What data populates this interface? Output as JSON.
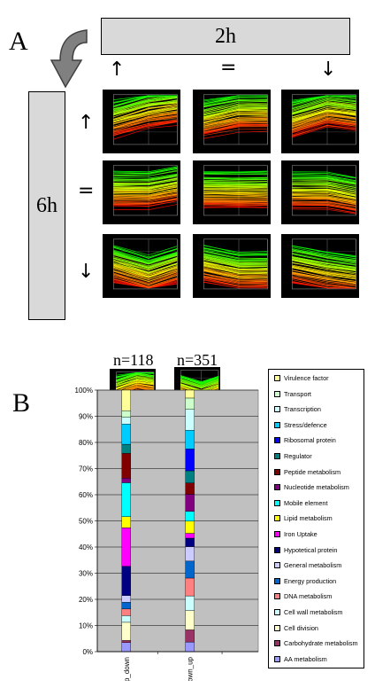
{
  "panel_a": {
    "letter": "A",
    "top_box_label": "2h",
    "side_box_label": "6h",
    "column_symbols": [
      "↑",
      "=",
      "↓"
    ],
    "row_symbols": [
      "↑",
      "=",
      "↓"
    ]
  },
  "panel_b": {
    "letter": "B",
    "counts": [
      "n=118",
      "n=351"
    ]
  },
  "colors": {
    "box_fill": "#d9d9d9",
    "plot_bg": "#c0c0c0",
    "thumb_bg": "#000000"
  },
  "chart_data": {
    "type": "bar",
    "stacked": true,
    "categories": [
      "up_down",
      "down_up"
    ],
    "ylim": [
      0,
      100
    ],
    "y_ticks": [
      "0%",
      "10%",
      "20%",
      "30%",
      "40%",
      "50%",
      "60%",
      "70%",
      "80%",
      "90%",
      "100%"
    ],
    "legend_position": "right",
    "series": [
      {
        "name": "AA metabolism",
        "color": "#9999ff",
        "values": [
          3.4,
          3.4
        ]
      },
      {
        "name": "Carbohydrate metabolism",
        "color": "#993366",
        "values": [
          0.8,
          4.3
        ]
      },
      {
        "name": "Cell division",
        "color": "#ffffcc",
        "values": [
          6.8,
          6.8
        ]
      },
      {
        "name": "Cell wall metabolism",
        "color": "#ccffff",
        "values": [
          2.5,
          5.2
        ]
      },
      {
        "name": "DNA metabolism",
        "color": "#ff8080",
        "values": [
          2.5,
          6.3
        ]
      },
      {
        "name": "Energy production",
        "color": "#0066cc",
        "values": [
          2.5,
          6.0
        ]
      },
      {
        "name": "General metabolism",
        "color": "#ccccff",
        "values": [
          2.5,
          5.1
        ]
      },
      {
        "name": "Hypotetical protein",
        "color": "#000080",
        "values": [
          11.0,
          3.0
        ]
      },
      {
        "name": "Iron Uptake",
        "color": "#ff00ff",
        "values": [
          14.4,
          1.7
        ]
      },
      {
        "name": "Lipid metabolism",
        "color": "#ffff00",
        "values": [
          4.2,
          4.3
        ]
      },
      {
        "name": "Mobile element",
        "color": "#00ffff",
        "values": [
          12.7,
          3.5
        ]
      },
      {
        "name": "Nucleotide metabolism",
        "color": "#800080",
        "values": [
          1.7,
          6.0
        ]
      },
      {
        "name": "Peptide metabolism",
        "color": "#800000",
        "values": [
          9.3,
          4.0
        ]
      },
      {
        "name": "Regulator",
        "color": "#008080",
        "values": [
          3.4,
          4.3
        ]
      },
      {
        "name": "Ribosomal protein",
        "color": "#0000ff",
        "values": [
          0.0,
          7.7
        ]
      },
      {
        "name": "Stress/defence",
        "color": "#00ccff",
        "values": [
          7.6,
          6.6
        ]
      },
      {
        "name": "Transcription",
        "color": "#ccffff",
        "values": [
          2.5,
          7.4
        ]
      },
      {
        "name": "Transport",
        "color": "#ccffcc",
        "values": [
          2.5,
          4.0
        ]
      },
      {
        "name": "Virulence factor",
        "color": "#ffff99",
        "values": [
          7.7,
          2.8
        ]
      }
    ]
  }
}
